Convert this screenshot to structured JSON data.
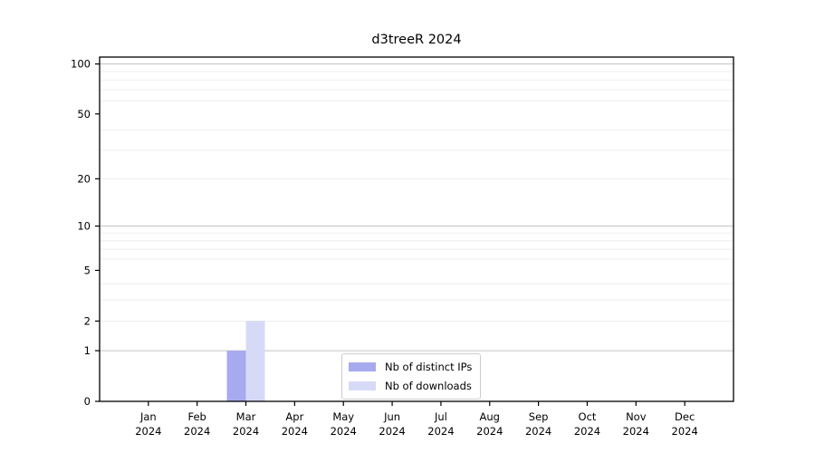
{
  "chart_data": {
    "type": "bar",
    "title": "d3treeR 2024",
    "categories": [
      "Jan",
      "Feb",
      "Mar",
      "Apr",
      "May",
      "Jun",
      "Jul",
      "Aug",
      "Sep",
      "Oct",
      "Nov",
      "Dec"
    ],
    "x_tick_year": "2024",
    "series": [
      {
        "name": "Nb of distinct IPs",
        "color": "#a7aaef",
        "values": [
          0,
          0,
          1,
          0,
          0,
          0,
          0,
          0,
          0,
          0,
          0,
          0
        ]
      },
      {
        "name": "Nb of downloads",
        "color": "#d7daf7",
        "values": [
          0,
          0,
          2,
          0,
          0,
          0,
          0,
          0,
          0,
          0,
          0,
          0
        ]
      }
    ],
    "y_scale": "log1p",
    "ylim": [
      0,
      110
    ],
    "y_ticks": [
      0,
      1,
      2,
      5,
      10,
      20,
      50,
      100
    ],
    "y_major_gridlines": [
      1,
      10,
      100
    ],
    "y_minor_gridlines": [
      2,
      3,
      4,
      6,
      7,
      8,
      9,
      20,
      30,
      40,
      60,
      70,
      80,
      90
    ],
    "grid": true,
    "legend_position": "bottom-center",
    "colors": {
      "spine": "#000000",
      "major_grid": "#c3c3c3",
      "minor_grid": "#ededed",
      "tick_label": "#000000"
    }
  }
}
